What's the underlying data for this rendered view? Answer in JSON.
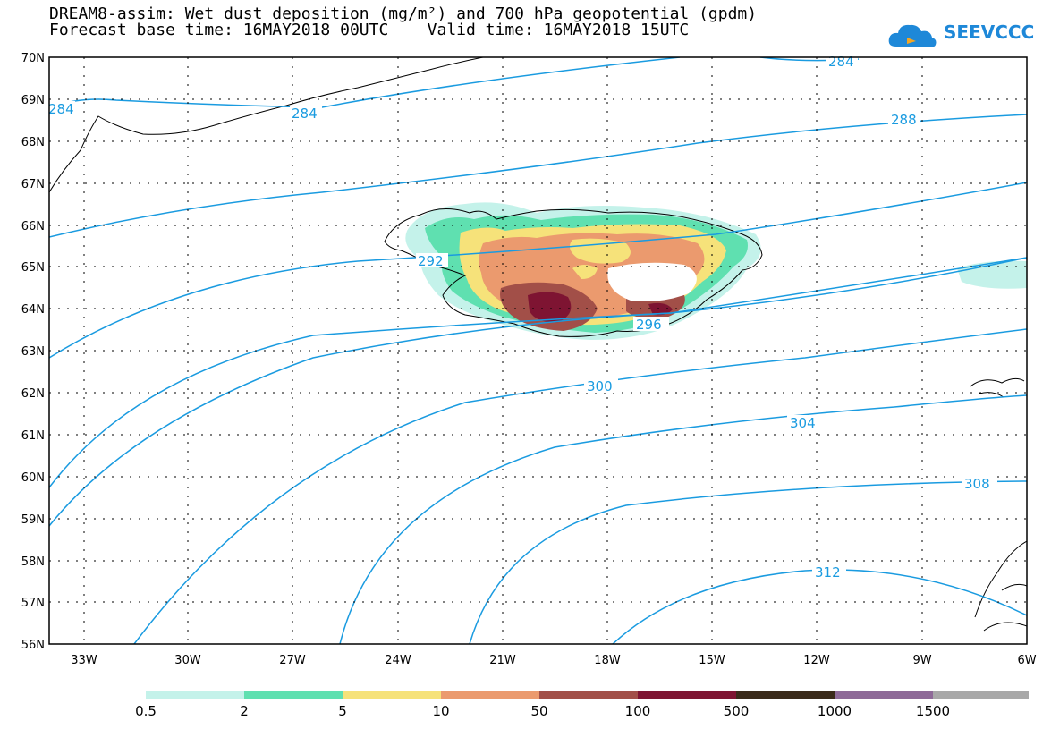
{
  "header": {
    "title_line1": "DREAM8-assim: Wet dust deposition (mg/m²) and 700 hPa geopotential (gpdm)",
    "title_line2": "Forecast base time: 16MAY2018 00UTC    Valid time: 16MAY2018 15UTC"
  },
  "logo": {
    "text": "SEEVCCC",
    "icon": "cloud-icon",
    "color": "#1e88d8"
  },
  "map": {
    "lat_labels": [
      "70N",
      "69N",
      "68N",
      "67N",
      "66N",
      "65N",
      "64N",
      "63N",
      "62N",
      "61N",
      "60N",
      "59N",
      "58N",
      "57N",
      "56N"
    ],
    "lon_labels": [
      "33W",
      "30W",
      "27W",
      "24W",
      "21W",
      "18W",
      "15W",
      "12W",
      "9W",
      "6W"
    ],
    "contour_color": "#1a9be0",
    "contour_labels": [
      "284",
      "284",
      "284",
      "288",
      "292",
      "296",
      "300",
      "304",
      "308",
      "312"
    ]
  },
  "legend": {
    "colors": [
      "#c4f2ea",
      "#5fe0b0",
      "#f6e27a",
      "#eb9a6e",
      "#a24f48",
      "#7e1432",
      "#3a2a1a",
      "#8e6a98",
      "#a8a8a8"
    ],
    "labels": [
      "0.5",
      "2",
      "5",
      "10",
      "50",
      "100",
      "500",
      "1000",
      "1500"
    ]
  }
}
